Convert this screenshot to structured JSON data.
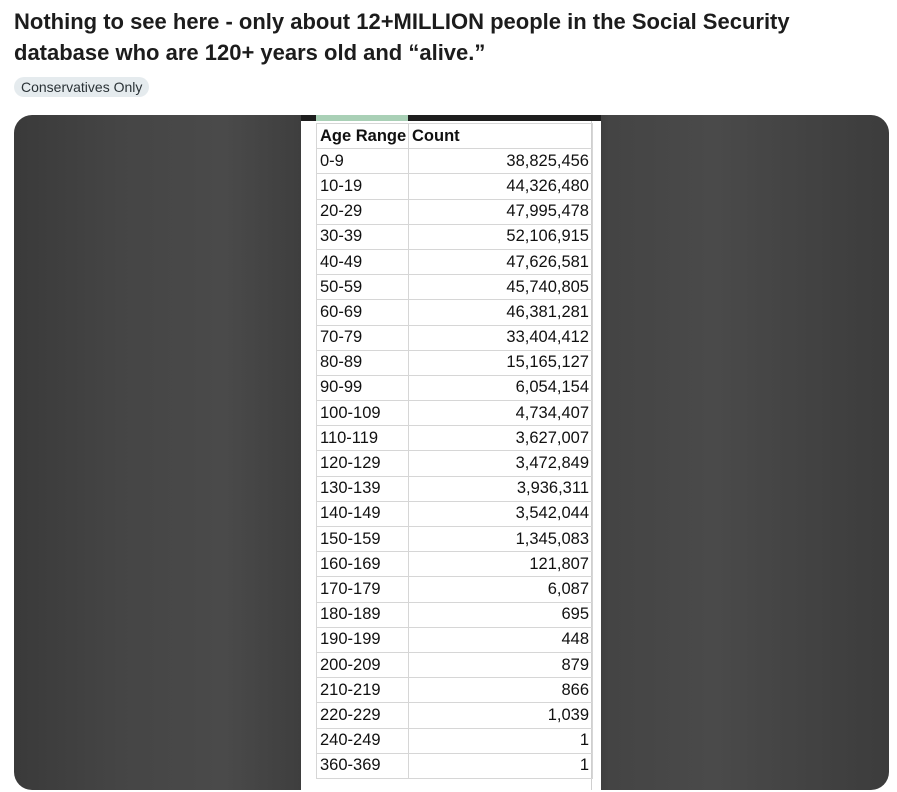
{
  "post": {
    "title": "Nothing to see here - only about 12+MILLION people in the Social Security database who are 120+ years old and “alive.”",
    "flair": "Conservatives Only"
  },
  "table": {
    "headers": [
      "Age Range",
      "Count"
    ],
    "rows": [
      {
        "range": "0-9",
        "count": "38,825,456"
      },
      {
        "range": "10-19",
        "count": "44,326,480"
      },
      {
        "range": "20-29",
        "count": "47,995,478"
      },
      {
        "range": "30-39",
        "count": "52,106,915"
      },
      {
        "range": "40-49",
        "count": "47,626,581"
      },
      {
        "range": "50-59",
        "count": "45,740,805"
      },
      {
        "range": "60-69",
        "count": "46,381,281"
      },
      {
        "range": "70-79",
        "count": "33,404,412"
      },
      {
        "range": "80-89",
        "count": "15,165,127"
      },
      {
        "range": "90-99",
        "count": "6,054,154"
      },
      {
        "range": "100-109",
        "count": "4,734,407"
      },
      {
        "range": "110-119",
        "count": "3,627,007"
      },
      {
        "range": "120-129",
        "count": "3,472,849"
      },
      {
        "range": "130-139",
        "count": "3,936,311"
      },
      {
        "range": "140-149",
        "count": "3,542,044"
      },
      {
        "range": "150-159",
        "count": "1,345,083"
      },
      {
        "range": "160-169",
        "count": "121,807"
      },
      {
        "range": "170-179",
        "count": "6,087"
      },
      {
        "range": "180-189",
        "count": "695"
      },
      {
        "range": "190-199",
        "count": "448"
      },
      {
        "range": "200-209",
        "count": "879"
      },
      {
        "range": "210-219",
        "count": "866"
      },
      {
        "range": "220-229",
        "count": "1,039"
      },
      {
        "range": "240-249",
        "count": "1"
      },
      {
        "range": "360-369",
        "count": "1"
      }
    ]
  },
  "colors": {
    "flair_bg": "#e5ebee",
    "media_bg": "#3a3a3a",
    "selection_accent": "#a9d0b6"
  }
}
